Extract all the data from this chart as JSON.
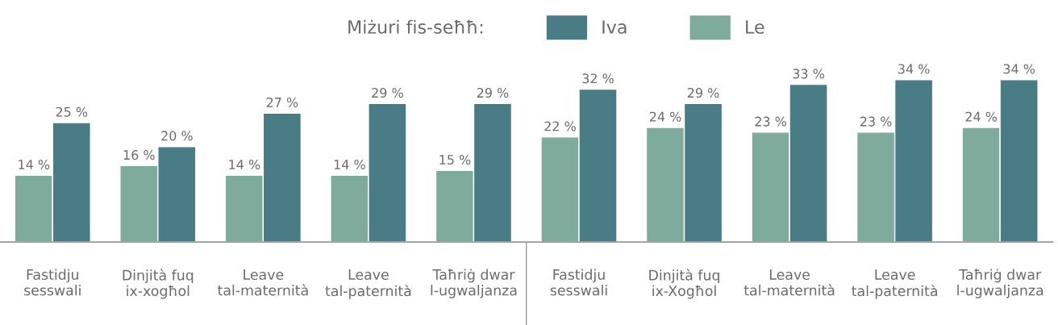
{
  "chart_data": {
    "type": "bar",
    "legend_title": "Miżuri fis-seħħ:",
    "categories": [
      "Fastidju\nsesswali",
      "Dinjità fuq\nix-xogħol",
      "Leave\ntal-maternità",
      "Leave\ntal-paternità",
      "Taħriġ dwar\nl-ugwaljanza",
      "Fastidju\nsesswali",
      "Dinjità fuq\nix-Xogħol",
      "Leave\ntal-maternità",
      "Leave\ntal-paternità",
      "Taħriġ dwar\nl-ugwaljanza"
    ],
    "series": [
      {
        "name": "Le",
        "color": "#7eab9b",
        "values": [
          14,
          16,
          14,
          14,
          15,
          22,
          24,
          23,
          23,
          24
        ],
        "value_labels": [
          "14 %",
          "16 %",
          "14 %",
          "14 %",
          "15 %",
          "22 %",
          "24 %",
          "23 %",
          "23 %",
          "24 %"
        ]
      },
      {
        "name": "Iva",
        "color": "#4a7c85",
        "values": [
          25,
          20,
          27,
          29,
          29,
          32,
          29,
          33,
          34,
          34
        ],
        "value_labels": [
          "25 %",
          "20 %",
          "27 %",
          "29 %",
          "29 %",
          "32 %",
          "29 %",
          "33 %",
          "34 %",
          "34 %"
        ]
      }
    ],
    "legend": "top",
    "grid": false
  }
}
